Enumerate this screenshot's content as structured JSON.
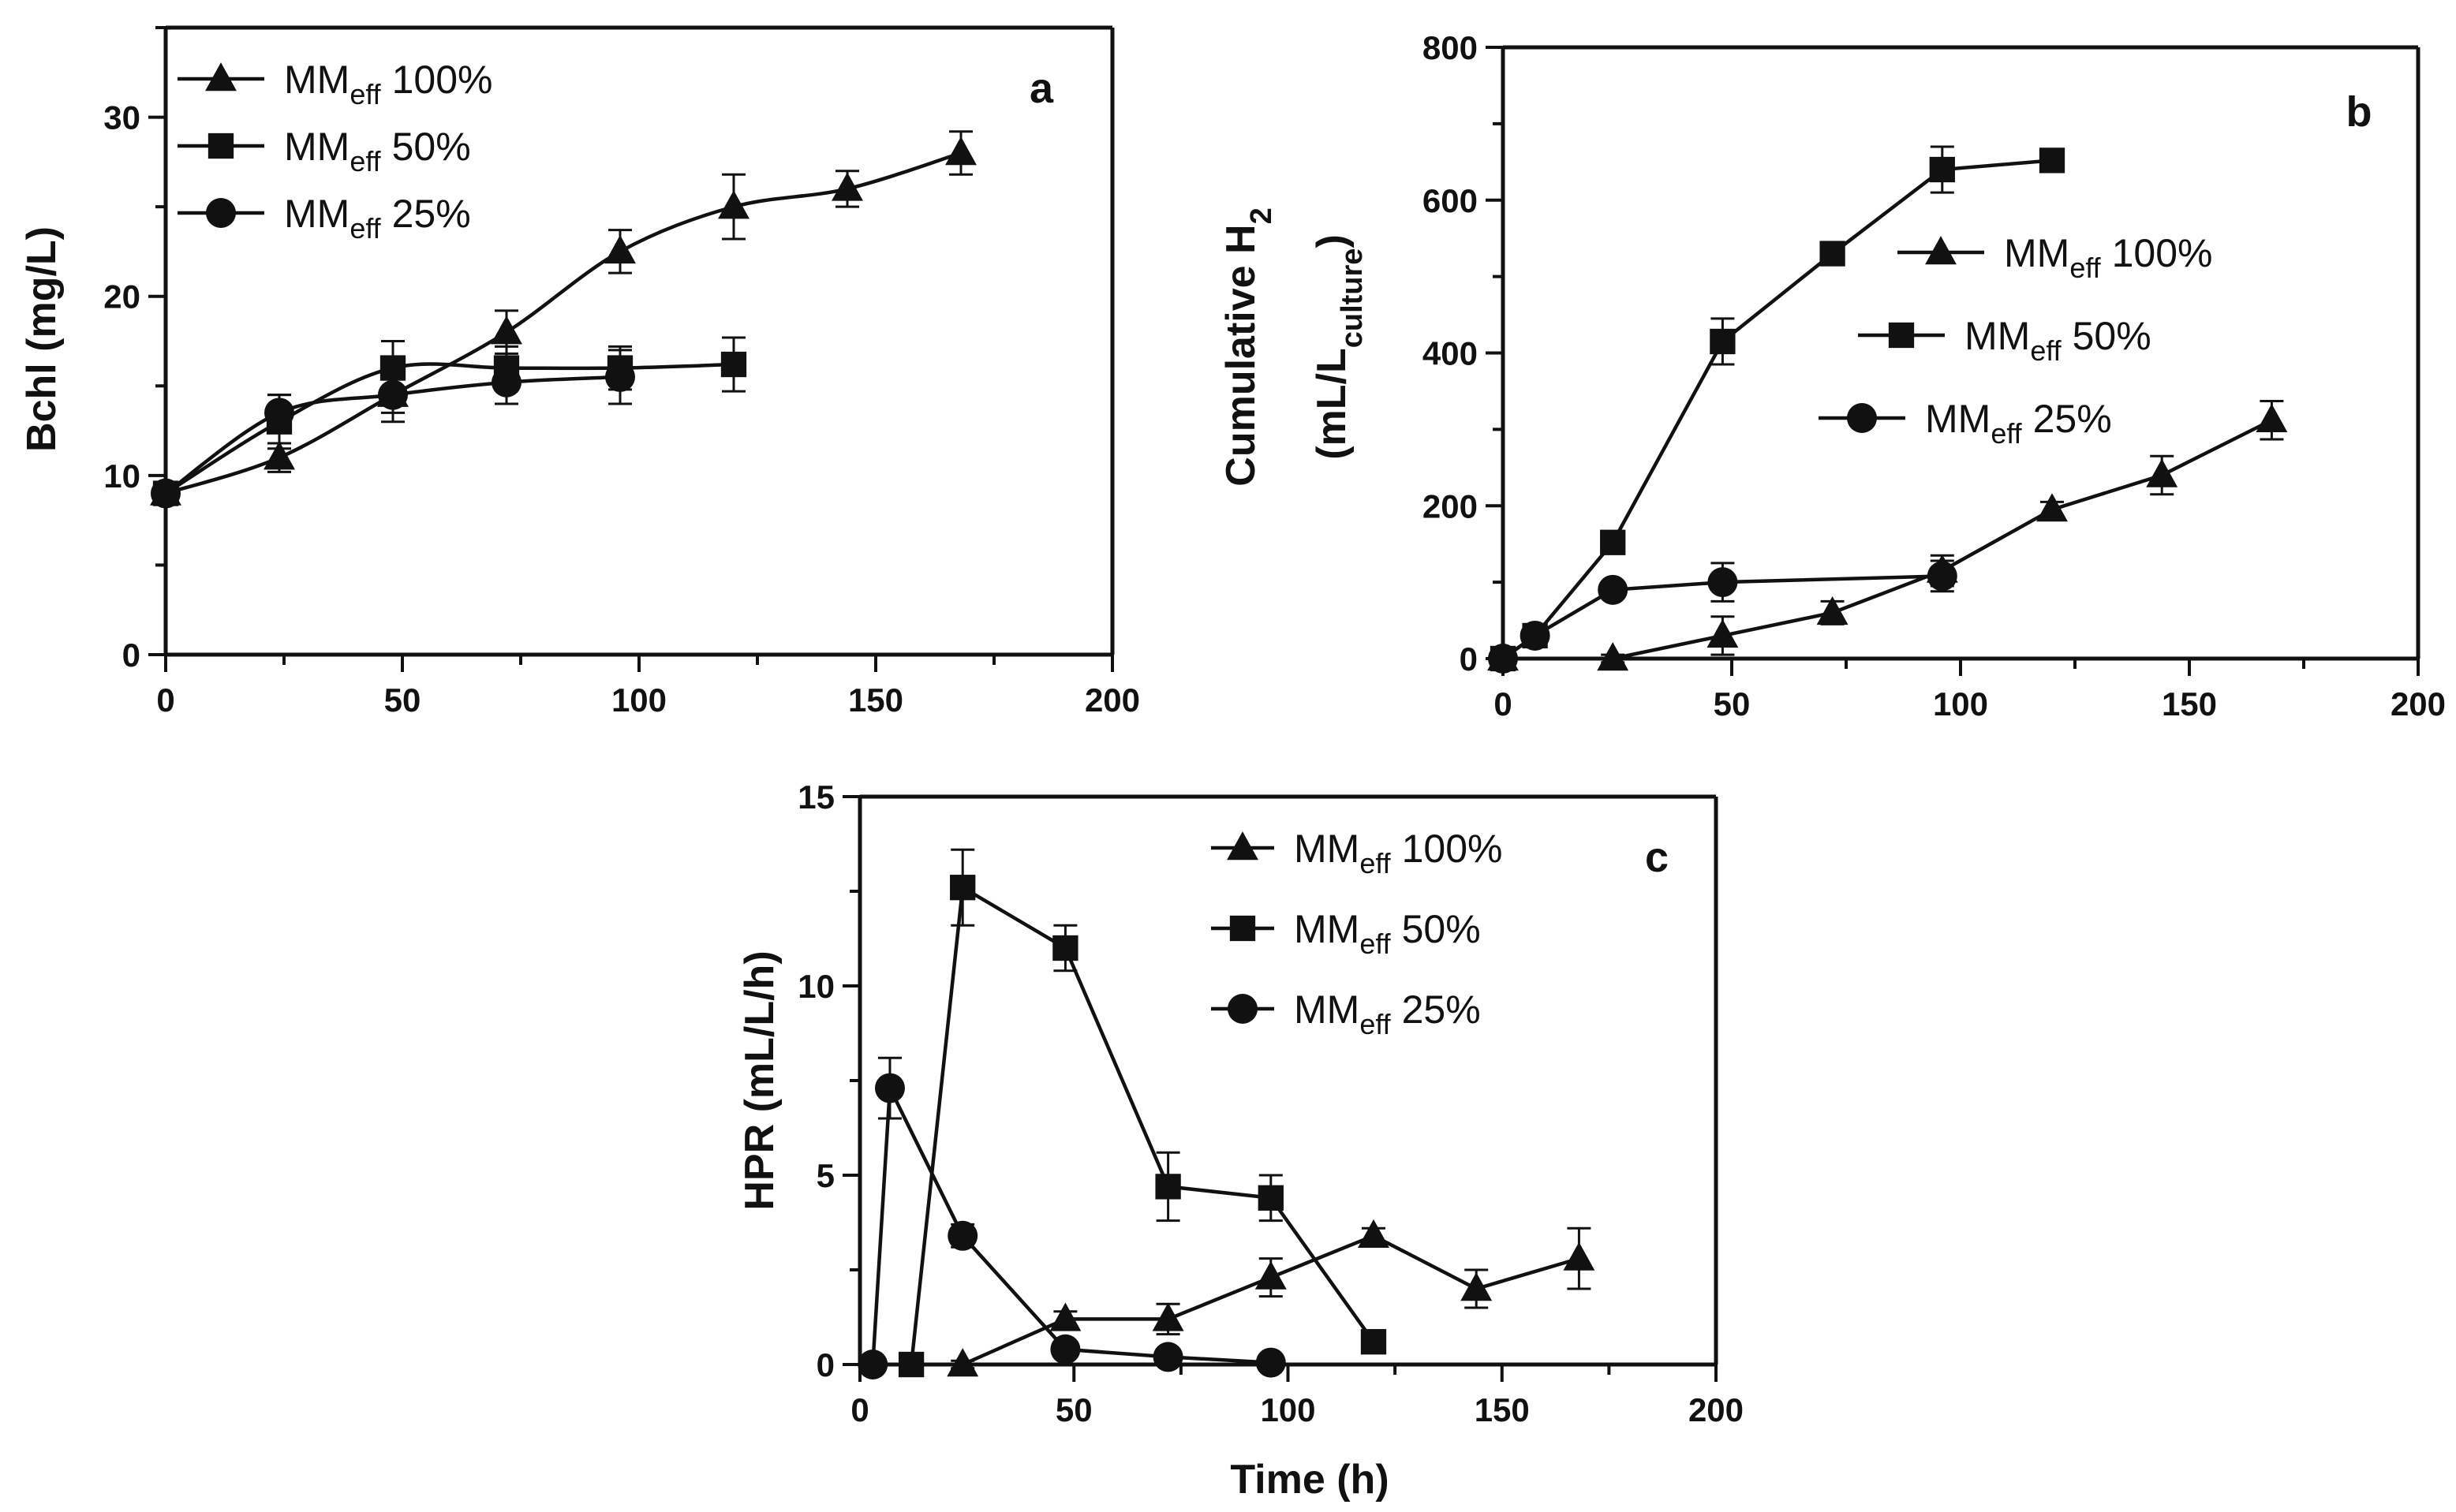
{
  "chart_data": [
    {
      "type": "line",
      "panel": "a",
      "ylabel": "Bchl (mg/L)",
      "xlabel": "",
      "xlim": [
        0,
        200
      ],
      "ylim": [
        0,
        35
      ],
      "xticks": [
        0,
        50,
        100,
        150,
        200
      ],
      "yticks": [
        0,
        10,
        20,
        30
      ],
      "legend_position": "top-left",
      "series": [
        {
          "name": "MMeff 100%",
          "prefix": "MM",
          "sub": "eff",
          "suffix": " 100%",
          "marker": "triangle",
          "x": [
            0,
            24,
            48,
            72,
            96,
            120,
            144,
            168
          ],
          "y": [
            9,
            11,
            14.5,
            18,
            22.5,
            25,
            26,
            28
          ],
          "err": [
            0.5,
            0.8,
            1.0,
            1.2,
            1.2,
            1.8,
            1.0,
            1.2
          ]
        },
        {
          "name": "MMeff 50%",
          "prefix": "MM",
          "sub": "eff",
          "suffix": " 50%",
          "marker": "square",
          "x": [
            0,
            24,
            48,
            72,
            96,
            120
          ],
          "y": [
            9,
            13,
            16,
            16,
            16,
            16.2
          ],
          "err": [
            0.5,
            1.5,
            1.5,
            1.2,
            1.2,
            1.5
          ]
        },
        {
          "name": "MMeff 25%",
          "prefix": "MM",
          "sub": "eff",
          "suffix": " 25%",
          "marker": "circle",
          "x": [
            0,
            24,
            48,
            72,
            96
          ],
          "y": [
            9,
            13.5,
            14.5,
            15.2,
            15.5
          ],
          "err": [
            0.5,
            1.0,
            1.5,
            1.2,
            1.5
          ]
        }
      ]
    },
    {
      "type": "line",
      "panel": "b",
      "ylabel_line1": "Cumulative H2",
      "ylabel_line2": "(mL/Lculture)",
      "xlabel": "",
      "xlim": [
        0,
        200
      ],
      "ylim": [
        0,
        800
      ],
      "xticks": [
        0,
        50,
        100,
        150,
        200
      ],
      "yticks": [
        0,
        200,
        400,
        600,
        800
      ],
      "legend_position": "center-right",
      "series": [
        {
          "name": "MMeff 100%",
          "prefix": "MM",
          "sub": "eff",
          "suffix": " 100%",
          "marker": "triangle",
          "x": [
            0,
            24,
            48,
            72,
            96,
            120,
            144,
            168
          ],
          "y": [
            0,
            0,
            30,
            60,
            115,
            195,
            240,
            312
          ],
          "err": [
            5,
            5,
            25,
            15,
            20,
            10,
            25,
            25
          ]
        },
        {
          "name": "MMeff 50%",
          "prefix": "MM",
          "sub": "eff",
          "suffix": " 50%",
          "marker": "square",
          "x": [
            0,
            7,
            24,
            48,
            72,
            96,
            120
          ],
          "y": [
            0,
            30,
            152,
            415,
            530,
            640,
            652
          ],
          "err": [
            5,
            8,
            10,
            30,
            10,
            30,
            10
          ]
        },
        {
          "name": "MMeff 25%",
          "prefix": "MM",
          "sub": "eff",
          "suffix": " 25%",
          "marker": "circle",
          "x": [
            0,
            7,
            24,
            48,
            96
          ],
          "y": [
            0,
            30,
            90,
            100,
            108
          ],
          "err": [
            5,
            8,
            10,
            25,
            20
          ]
        }
      ]
    },
    {
      "type": "line",
      "panel": "c",
      "ylabel": "HPR (mL/L/h)",
      "xlabel": "Time (h)",
      "xlim": [
        0,
        200
      ],
      "ylim": [
        0,
        15
      ],
      "xticks": [
        0,
        50,
        100,
        150,
        200
      ],
      "yticks": [
        0,
        5,
        10,
        15
      ],
      "legend_position": "top-right",
      "series": [
        {
          "name": "MMeff 100%",
          "prefix": "MM",
          "sub": "eff",
          "suffix": " 100%",
          "marker": "triangle",
          "x": [
            24,
            48,
            72,
            96,
            120,
            144,
            168
          ],
          "y": [
            0,
            1.2,
            1.2,
            2.3,
            3.4,
            2.0,
            2.8
          ],
          "err": [
            0.1,
            0.2,
            0.4,
            0.5,
            0.2,
            0.5,
            0.8
          ]
        },
        {
          "name": "MMeff 50%",
          "prefix": "MM",
          "sub": "eff",
          "suffix": " 50%",
          "marker": "square",
          "x": [
            12,
            24,
            48,
            72,
            96,
            120
          ],
          "y": [
            0,
            12.6,
            11.0,
            4.7,
            4.4,
            0.6
          ],
          "err": [
            0.1,
            1.0,
            0.6,
            0.9,
            0.6,
            0.1
          ]
        },
        {
          "name": "MMeff 25%",
          "prefix": "MM",
          "sub": "eff",
          "suffix": " 25%",
          "marker": "circle",
          "x": [
            3,
            7,
            24,
            48,
            72,
            96
          ],
          "y": [
            0,
            7.3,
            3.4,
            0.4,
            0.2,
            0.05
          ],
          "err": [
            0.1,
            0.8,
            0.3,
            0.1,
            0.1,
            0.05
          ]
        }
      ]
    }
  ]
}
